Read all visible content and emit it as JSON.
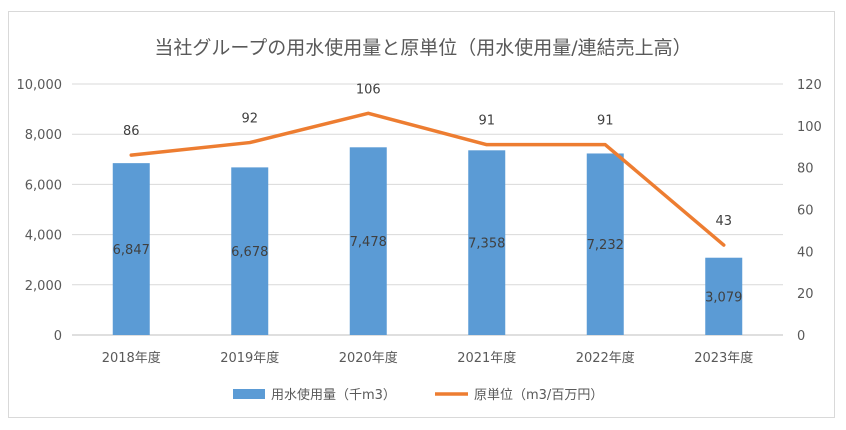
{
  "chart_data": {
    "type": "bar",
    "title": "当社グループの用水使用量と原単位（用水使用量/連結売上高）",
    "categories": [
      "2018年度",
      "2019年度",
      "2020年度",
      "2021年度",
      "2022年度",
      "2023年度"
    ],
    "bar_series": {
      "name": "用水使用量（千m3）",
      "values": [
        6847,
        6678,
        7478,
        7358,
        7232,
        3079
      ],
      "labels": [
        "6,847",
        "6,678",
        "7,478",
        "7,358",
        "7,232",
        "3,079"
      ],
      "color": "#5b9bd5"
    },
    "line_series": {
      "name": "原単位（m3/百万円）",
      "values": [
        86,
        92,
        106,
        91,
        91,
        43
      ],
      "labels": [
        "86",
        "92",
        "106",
        "91",
        "91",
        "43"
      ],
      "color": "#ed7d31"
    },
    "y_left": {
      "min": 0,
      "max": 10000,
      "ticks": [
        "0",
        "2,000",
        "4,000",
        "6,000",
        "8,000",
        "10,000"
      ]
    },
    "y_right": {
      "min": 0,
      "max": 120,
      "ticks": [
        "0",
        "20",
        "40",
        "60",
        "80",
        "100",
        "120"
      ]
    },
    "legend_position": "bottom",
    "grid": "horizontal"
  }
}
